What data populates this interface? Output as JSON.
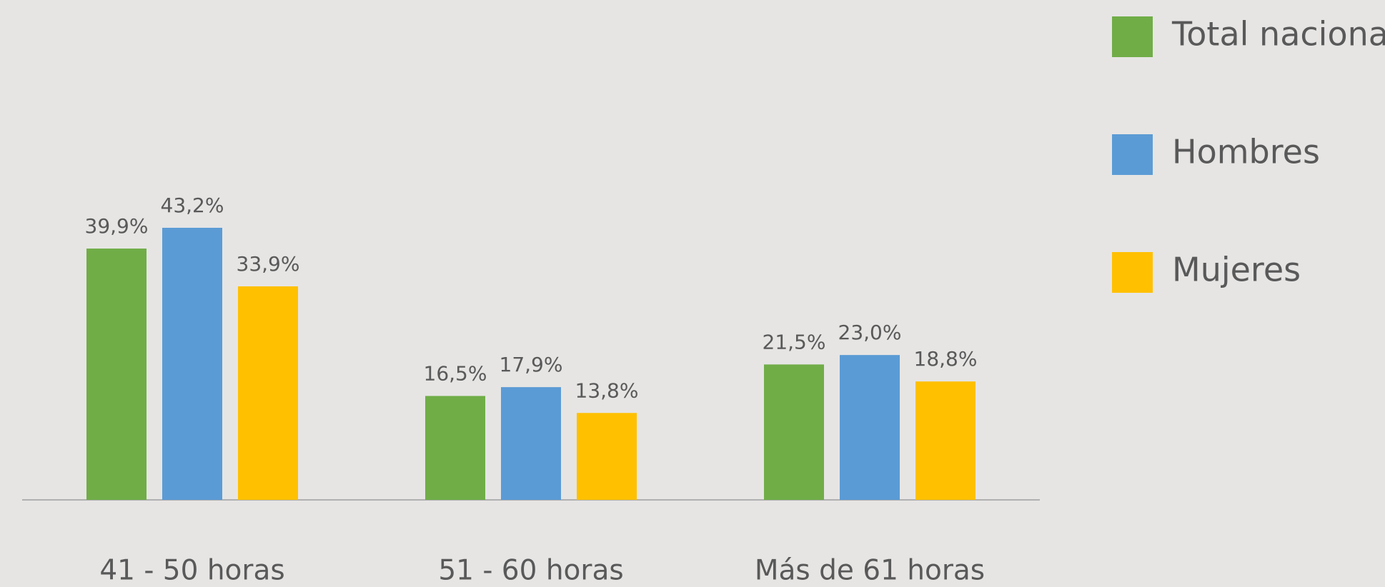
{
  "chart_data": {
    "type": "bar",
    "categories": [
      "41 - 50 horas",
      "51 - 60 horas",
      "Más de 61 horas"
    ],
    "series": [
      {
        "name": "Total nacional",
        "color": "#70ad47",
        "values": [
          39.9,
          16.5,
          21.5
        ],
        "value_labels": [
          "39,9%",
          "16,5%",
          "21,5%"
        ]
      },
      {
        "name": "Hombres",
        "color": "#5b9bd5",
        "values": [
          43.2,
          17.9,
          23.0
        ],
        "value_labels": [
          "43,2%",
          "17,9%",
          "23,0%"
        ]
      },
      {
        "name": "Mujeres",
        "color": "#ffc000",
        "values": [
          33.9,
          13.8,
          18.8
        ],
        "value_labels": [
          "33,9%",
          "13,8%",
          "18,8%"
        ]
      }
    ],
    "legend": "right"
  }
}
